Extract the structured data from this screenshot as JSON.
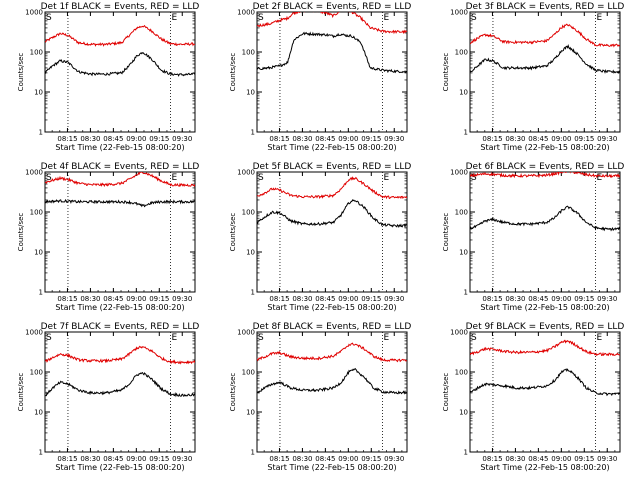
{
  "chart_data": {
    "type": "line",
    "common": {
      "xlabel": "Start Time (22-Feb-15 08:00:20)",
      "ylabel": "Counts/sec",
      "xticks": [
        "08:15",
        "08:30",
        "08:45",
        "09:00",
        "09:15",
        "09:30"
      ],
      "xtick_minutes": [
        14.67,
        29.67,
        44.67,
        59.67,
        74.67,
        89.67
      ],
      "xlim_minutes": [
        0,
        98
      ],
      "yscale": "log",
      "ylim": [
        1,
        1000
      ],
      "yticks": [
        "1",
        "10",
        "100",
        "1000"
      ],
      "marker_S_minute": 0,
      "marker_E_minute": 82,
      "dotted_minutes": [
        15,
        82
      ],
      "black_color": "#000000",
      "red_color": "#e00000"
    },
    "panels": [
      {
        "title": "Det 1f BLACK = Events, RED = LLD",
        "ylim": [
          1,
          1000
        ],
        "marker_S": "S",
        "marker_E": "E",
        "t": [
          0,
          5,
          10,
          15,
          22,
          30,
          40,
          50,
          55,
          60,
          64,
          70,
          76,
          82,
          90,
          98
        ],
        "black": [
          30,
          45,
          60,
          55,
          32,
          28,
          28,
          30,
          45,
          80,
          100,
          65,
          35,
          28,
          27,
          28
        ],
        "red": [
          180,
          230,
          290,
          260,
          170,
          155,
          155,
          170,
          260,
          400,
          450,
          330,
          210,
          160,
          155,
          160
        ]
      },
      {
        "title": "Det 2f BLACK = Events, RED = LLD",
        "ylim": [
          1,
          1000
        ],
        "marker_S": "S",
        "marker_E": "E",
        "t": [
          0,
          8,
          15,
          20,
          24,
          30,
          38,
          45,
          50,
          54,
          58,
          62,
          68,
          74,
          82,
          90,
          98
        ],
        "black": [
          38,
          40,
          45,
          55,
          200,
          290,
          280,
          270,
          250,
          280,
          260,
          250,
          170,
          40,
          35,
          33,
          32
        ],
        "red": [
          450,
          500,
          620,
          700,
          950,
          1100,
          1100,
          950,
          800,
          1050,
          1150,
          1000,
          700,
          400,
          330,
          320,
          320
        ]
      },
      {
        "title": "Det 3f BLACK = Events, RED = LLD",
        "ylim": [
          1,
          1000
        ],
        "marker_S": "S",
        "marker_E": "E",
        "t": [
          0,
          5,
          10,
          15,
          22,
          30,
          40,
          50,
          55,
          60,
          64,
          70,
          76,
          82,
          90,
          98
        ],
        "black": [
          30,
          45,
          65,
          60,
          40,
          40,
          40,
          45,
          65,
          110,
          140,
          90,
          50,
          35,
          32,
          32
        ],
        "red": [
          170,
          220,
          270,
          250,
          180,
          175,
          175,
          190,
          270,
          420,
          480,
          340,
          210,
          150,
          145,
          150
        ]
      },
      {
        "title": "Det 4f BLACK = Events, RED = LLD",
        "ylim": [
          1,
          1000
        ],
        "marker_S": "S",
        "marker_E": "E",
        "t": [
          0,
          5,
          10,
          15,
          22,
          30,
          40,
          50,
          55,
          60,
          64,
          70,
          76,
          82,
          90,
          98
        ],
        "black": [
          180,
          185,
          190,
          185,
          180,
          180,
          180,
          180,
          175,
          160,
          140,
          170,
          180,
          180,
          180,
          180
        ],
        "red": [
          550,
          620,
          700,
          650,
          520,
          480,
          480,
          520,
          650,
          850,
          1000,
          800,
          600,
          480,
          470,
          470
        ]
      },
      {
        "title": "Det 5f BLACK = Events, RED = LLD",
        "ylim": [
          1,
          1000
        ],
        "marker_S": "S",
        "marker_E": "E",
        "t": [
          0,
          5,
          10,
          15,
          22,
          30,
          40,
          50,
          55,
          60,
          64,
          70,
          76,
          82,
          90,
          98
        ],
        "black": [
          55,
          75,
          100,
          95,
          60,
          50,
          50,
          55,
          85,
          170,
          200,
          130,
          70,
          48,
          45,
          46
        ],
        "red": [
          250,
          300,
          380,
          350,
          260,
          240,
          240,
          260,
          380,
          650,
          700,
          500,
          330,
          240,
          230,
          235
        ]
      },
      {
        "title": "Det 6f BLACK = Events, RED = LLD",
        "ylim": [
          1,
          1000
        ],
        "marker_S": "S",
        "marker_E": "E",
        "t": [
          0,
          5,
          10,
          15,
          22,
          30,
          40,
          50,
          55,
          60,
          64,
          70,
          76,
          82,
          90,
          98
        ],
        "black": [
          38,
          45,
          60,
          65,
          55,
          50,
          50,
          55,
          70,
          110,
          135,
          95,
          55,
          40,
          37,
          38
        ],
        "red": [
          800,
          850,
          900,
          880,
          820,
          800,
          800,
          830,
          900,
          1000,
          1050,
          950,
          860,
          800,
          790,
          790
        ]
      },
      {
        "title": "Det 7f BLACK = Events, RED = LLD",
        "ylim": [
          1,
          1000
        ],
        "marker_S": "S",
        "marker_E": "E",
        "t": [
          0,
          5,
          10,
          15,
          22,
          30,
          40,
          50,
          55,
          60,
          64,
          70,
          76,
          82,
          90,
          98
        ],
        "black": [
          25,
          40,
          55,
          50,
          35,
          30,
          30,
          35,
          50,
          85,
          95,
          65,
          38,
          28,
          26,
          27
        ],
        "red": [
          180,
          230,
          280,
          260,
          200,
          190,
          190,
          210,
          280,
          400,
          420,
          330,
          220,
          180,
          175,
          180
        ]
      },
      {
        "title": "Det 8f BLACK = Events, RED = LLD",
        "ylim": [
          1,
          1000
        ],
        "marker_S": "S",
        "marker_E": "E",
        "t": [
          0,
          5,
          10,
          15,
          22,
          30,
          40,
          50,
          55,
          60,
          64,
          70,
          76,
          82,
          90,
          98
        ],
        "black": [
          30,
          40,
          50,
          55,
          40,
          35,
          35,
          40,
          55,
          100,
          115,
          75,
          40,
          32,
          30,
          31
        ],
        "red": [
          200,
          240,
          290,
          300,
          240,
          220,
          220,
          250,
          330,
          480,
          500,
          380,
          250,
          200,
          195,
          200
        ]
      },
      {
        "title": "Det 9f BLACK = Events, RED = LLD",
        "ylim": [
          1,
          1000
        ],
        "marker_S": "S",
        "marker_E": "E",
        "t": [
          0,
          5,
          10,
          15,
          22,
          30,
          40,
          50,
          55,
          60,
          64,
          70,
          76,
          82,
          90,
          98
        ],
        "black": [
          30,
          40,
          50,
          48,
          45,
          40,
          40,
          45,
          60,
          100,
          115,
          75,
          40,
          30,
          28,
          29
        ],
        "red": [
          280,
          320,
          380,
          370,
          330,
          310,
          310,
          340,
          420,
          560,
          600,
          450,
          320,
          280,
          275,
          280
        ]
      }
    ]
  }
}
